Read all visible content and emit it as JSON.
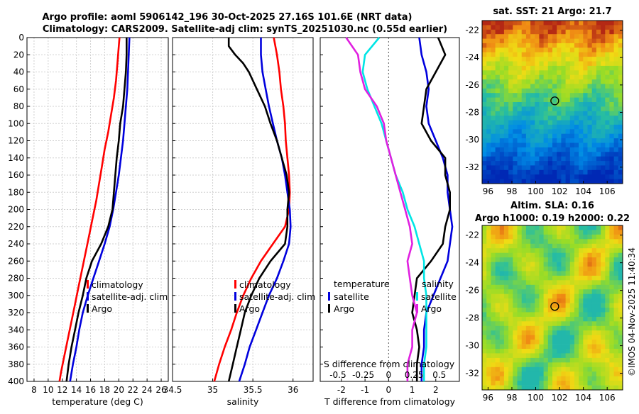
{
  "title": {
    "line1": "Argo profile: aoml 5906142_196 30-Oct-2025 27.16S 101.6E (NRT data)",
    "line2": "Climatology: CARS2009. Satellite-adj clim: synTS_20251030.nc (0.55d earlier)"
  },
  "colors": {
    "climatology": "#ff0000",
    "satellite": "#0000dd",
    "argo": "#000000",
    "salinity_sat": "#00e5e5",
    "salinity_clim": "#e020e0"
  },
  "watermark": "©IMOS 04-Nov-2025 11:40:34",
  "chart_data": [
    {
      "type": "line",
      "panel": "temperature",
      "xlabel": "temperature (deg C)",
      "xlim": [
        7,
        27
      ],
      "xticks": [
        "8",
        "10",
        "12",
        "14",
        "16",
        "18",
        "20",
        "22",
        "24",
        "26"
      ],
      "ylim": [
        0,
        400
      ],
      "yticks": [
        "0",
        "20",
        "40",
        "60",
        "80",
        "100",
        "120",
        "140",
        "160",
        "180",
        "200",
        "220",
        "240",
        "260",
        "280",
        "300",
        "320",
        "340",
        "360",
        "380",
        "400"
      ],
      "legend": [
        "climatology",
        "satellite-adj. clim",
        "Argo"
      ],
      "series": [
        {
          "name": "climatology",
          "color": "#ff0000",
          "points": [
            [
              20.1,
              0
            ],
            [
              20.0,
              10
            ],
            [
              19.8,
              30
            ],
            [
              19.6,
              50
            ],
            [
              19.3,
              70
            ],
            [
              18.9,
              90
            ],
            [
              18.5,
              110
            ],
            [
              18.0,
              130
            ],
            [
              17.6,
              150
            ],
            [
              17.2,
              170
            ],
            [
              16.8,
              190
            ],
            [
              16.3,
              210
            ],
            [
              15.8,
              230
            ],
            [
              15.3,
              250
            ],
            [
              14.8,
              270
            ],
            [
              14.3,
              290
            ],
            [
              13.8,
              310
            ],
            [
              13.3,
              330
            ],
            [
              12.8,
              350
            ],
            [
              12.3,
              370
            ],
            [
              11.8,
              390
            ],
            [
              11.6,
              400
            ]
          ]
        },
        {
          "name": "satellite-adj. clim",
          "color": "#0000dd",
          "points": [
            [
              21.5,
              0
            ],
            [
              21.4,
              20
            ],
            [
              21.3,
              40
            ],
            [
              21.2,
              60
            ],
            [
              21.0,
              80
            ],
            [
              20.8,
              100
            ],
            [
              20.6,
              120
            ],
            [
              20.3,
              140
            ],
            [
              20.0,
              160
            ],
            [
              19.6,
              180
            ],
            [
              19.2,
              200
            ],
            [
              18.7,
              220
            ],
            [
              18.0,
              240
            ],
            [
              17.2,
              260
            ],
            [
              16.4,
              280
            ],
            [
              15.6,
              300
            ],
            [
              14.9,
              320
            ],
            [
              14.4,
              340
            ],
            [
              14.0,
              360
            ],
            [
              13.5,
              380
            ],
            [
              13.1,
              400
            ]
          ]
        },
        {
          "name": "Argo",
          "color": "#000000",
          "points": [
            [
              21.1,
              0
            ],
            [
              21.1,
              20
            ],
            [
              21.0,
              40
            ],
            [
              20.8,
              60
            ],
            [
              20.6,
              80
            ],
            [
              20.2,
              100
            ],
            [
              20.0,
              120
            ],
            [
              19.7,
              140
            ],
            [
              19.5,
              160
            ],
            [
              19.3,
              180
            ],
            [
              19.1,
              200
            ],
            [
              18.5,
              220
            ],
            [
              17.5,
              240
            ],
            [
              16.2,
              260
            ],
            [
              15.4,
              280
            ],
            [
              14.9,
              300
            ],
            [
              14.3,
              320
            ],
            [
              13.8,
              340
            ],
            [
              13.3,
              360
            ],
            [
              12.9,
              380
            ],
            [
              12.6,
              400
            ]
          ]
        }
      ]
    },
    {
      "type": "line",
      "panel": "salinity",
      "xlabel": "salinity",
      "xlim": [
        34.5,
        36.25
      ],
      "xticks": [
        "34.5",
        "35",
        "35.5",
        "36"
      ],
      "ylim": [
        0,
        400
      ],
      "legend": [
        "climatology",
        "satellite-adj. clim",
        "Argo"
      ],
      "series": [
        {
          "name": "climatology",
          "color": "#ff0000",
          "points": [
            [
              35.76,
              0
            ],
            [
              35.8,
              20
            ],
            [
              35.83,
              40
            ],
            [
              35.85,
              60
            ],
            [
              35.88,
              80
            ],
            [
              35.9,
              100
            ],
            [
              35.91,
              120
            ],
            [
              35.93,
              140
            ],
            [
              35.95,
              160
            ],
            [
              35.96,
              180
            ],
            [
              35.95,
              200
            ],
            [
              35.9,
              220
            ],
            [
              35.75,
              240
            ],
            [
              35.6,
              260
            ],
            [
              35.48,
              280
            ],
            [
              35.38,
              300
            ],
            [
              35.3,
              320
            ],
            [
              35.23,
              340
            ],
            [
              35.15,
              360
            ],
            [
              35.08,
              380
            ],
            [
              35.02,
              400
            ]
          ]
        },
        {
          "name": "satellite-adj. clim",
          "color": "#0000dd",
          "points": [
            [
              35.6,
              0
            ],
            [
              35.6,
              20
            ],
            [
              35.62,
              40
            ],
            [
              35.66,
              60
            ],
            [
              35.7,
              80
            ],
            [
              35.75,
              100
            ],
            [
              35.8,
              120
            ],
            [
              35.86,
              140
            ],
            [
              35.9,
              160
            ],
            [
              35.93,
              180
            ],
            [
              35.96,
              200
            ],
            [
              35.97,
              220
            ],
            [
              35.95,
              240
            ],
            [
              35.88,
              260
            ],
            [
              35.8,
              280
            ],
            [
              35.7,
              300
            ],
            [
              35.62,
              320
            ],
            [
              35.54,
              340
            ],
            [
              35.46,
              360
            ],
            [
              35.4,
              380
            ],
            [
              35.33,
              400
            ]
          ]
        },
        {
          "name": "Argo",
          "color": "#000000",
          "points": [
            [
              35.2,
              0
            ],
            [
              35.2,
              10
            ],
            [
              35.28,
              20
            ],
            [
              35.38,
              30
            ],
            [
              35.45,
              40
            ],
            [
              35.55,
              60
            ],
            [
              35.65,
              80
            ],
            [
              35.72,
              100
            ],
            [
              35.8,
              120
            ],
            [
              35.86,
              140
            ],
            [
              35.92,
              160
            ],
            [
              35.95,
              180
            ],
            [
              35.93,
              200
            ],
            [
              35.93,
              220
            ],
            [
              35.9,
              240
            ],
            [
              35.72,
              260
            ],
            [
              35.58,
              280
            ],
            [
              35.48,
              300
            ],
            [
              35.4,
              320
            ],
            [
              35.35,
              340
            ],
            [
              35.3,
              360
            ],
            [
              35.25,
              380
            ],
            [
              35.2,
              400
            ]
          ]
        }
      ]
    },
    {
      "type": "line",
      "panel": "difference",
      "xlabel": "T difference from climatology",
      "xlim": [
        -2.9,
        3.0
      ],
      "xticks": [
        "-2",
        "-1",
        "0",
        "1",
        "2"
      ],
      "x2label": "S difference from climatology",
      "x2ticks": [
        "-0.5",
        "-0.25",
        "0",
        "0.25",
        "0.5"
      ],
      "ylim": [
        0,
        400
      ],
      "legend_left": {
        "header": "temperature",
        "items": [
          "satellite",
          "Argo"
        ]
      },
      "legend_right": {
        "header": "salinity",
        "items": [
          "satellite",
          "Argo"
        ]
      },
      "series": [
        {
          "name": "T satellite",
          "color": "#0000dd",
          "points": [
            [
              1.3,
              0
            ],
            [
              1.4,
              20
            ],
            [
              1.6,
              40
            ],
            [
              1.7,
              60
            ],
            [
              1.6,
              80
            ],
            [
              1.7,
              100
            ],
            [
              2.0,
              120
            ],
            [
              2.3,
              140
            ],
            [
              2.5,
              160
            ],
            [
              2.5,
              180
            ],
            [
              2.6,
              200
            ],
            [
              2.7,
              220
            ],
            [
              2.6,
              240
            ],
            [
              2.5,
              260
            ],
            [
              2.2,
              280
            ],
            [
              1.9,
              300
            ],
            [
              1.6,
              320
            ],
            [
              1.5,
              340
            ],
            [
              1.5,
              360
            ],
            [
              1.4,
              380
            ],
            [
              1.4,
              400
            ]
          ]
        },
        {
          "name": "T Argo",
          "color": "#000000",
          "points": [
            [
              2.1,
              0
            ],
            [
              2.4,
              20
            ],
            [
              2.0,
              40
            ],
            [
              1.6,
              60
            ],
            [
              1.5,
              80
            ],
            [
              1.4,
              100
            ],
            [
              1.8,
              120
            ],
            [
              2.4,
              140
            ],
            [
              2.4,
              160
            ],
            [
              2.6,
              180
            ],
            [
              2.6,
              200
            ],
            [
              2.4,
              220
            ],
            [
              2.3,
              240
            ],
            [
              1.8,
              260
            ],
            [
              1.2,
              280
            ],
            [
              1.1,
              300
            ],
            [
              1.0,
              320
            ],
            [
              1.2,
              340
            ],
            [
              1.3,
              360
            ],
            [
              1.2,
              380
            ],
            [
              1.2,
              400
            ]
          ]
        },
        {
          "name": "S satellite",
          "color": "#00e5e5",
          "points": [
            [
              -0.4,
              0
            ],
            [
              -1.0,
              20
            ],
            [
              -1.1,
              40
            ],
            [
              -0.9,
              60
            ],
            [
              -0.6,
              80
            ],
            [
              -0.3,
              100
            ],
            [
              -0.1,
              120
            ],
            [
              0.1,
              140
            ],
            [
              0.3,
              160
            ],
            [
              0.6,
              180
            ],
            [
              0.8,
              200
            ],
            [
              1.1,
              220
            ],
            [
              1.3,
              240
            ],
            [
              1.5,
              260
            ],
            [
              1.5,
              280
            ],
            [
              1.6,
              300
            ],
            [
              1.6,
              320
            ],
            [
              1.6,
              340
            ],
            [
              1.6,
              360
            ],
            [
              1.5,
              380
            ],
            [
              1.5,
              400
            ]
          ]
        },
        {
          "name": "S Argo",
          "color": "#e020e0",
          "points": [
            [
              -1.8,
              0
            ],
            [
              -1.3,
              20
            ],
            [
              -1.2,
              40
            ],
            [
              -1.0,
              60
            ],
            [
              -0.5,
              80
            ],
            [
              -0.2,
              100
            ],
            [
              -0.1,
              120
            ],
            [
              0.1,
              140
            ],
            [
              0.3,
              160
            ],
            [
              0.5,
              180
            ],
            [
              0.7,
              200
            ],
            [
              0.9,
              220
            ],
            [
              1.0,
              240
            ],
            [
              0.8,
              260
            ],
            [
              0.9,
              280
            ],
            [
              1.0,
              300
            ],
            [
              1.2,
              320
            ],
            [
              1.0,
              340
            ],
            [
              1.0,
              360
            ],
            [
              0.8,
              380
            ],
            [
              0.8,
              400
            ]
          ]
        }
      ]
    }
  ],
  "maps": [
    {
      "title": "sat. SST: 21 Argo: 21.7",
      "xticks": [
        "96",
        "98",
        "100",
        "102",
        "104",
        "106"
      ],
      "yticks": [
        "-22",
        "-24",
        "-26",
        "-28",
        "-30",
        "-32"
      ],
      "colormap": "sst"
    },
    {
      "title_line1": "Altim. SLA: 0.16",
      "title_line2": "Argo h1000: 0.19 h2000: 0.22",
      "xticks": [
        "96",
        "98",
        "100",
        "102",
        "104",
        "106"
      ],
      "yticks": [
        "-22",
        "-24",
        "-26",
        "-28",
        "-30",
        "-32"
      ],
      "colormap": "sla"
    }
  ]
}
